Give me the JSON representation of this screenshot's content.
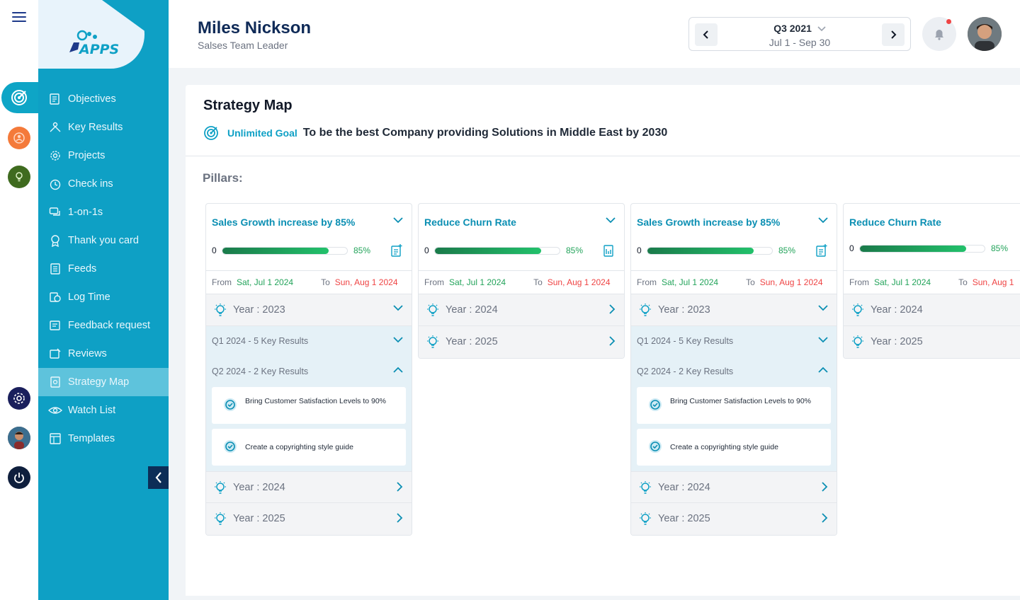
{
  "brand": {
    "logo_text_a": "i",
    "logo_text_b": "APPS"
  },
  "sidebar": {
    "items": [
      {
        "label": "Objectives",
        "icon": "objectives-icon"
      },
      {
        "label": "Key Results",
        "icon": "key-results-icon"
      },
      {
        "label": "Projects",
        "icon": "projects-icon"
      },
      {
        "label": "Check ins",
        "icon": "check-ins-icon"
      },
      {
        "label": "1-on-1s",
        "icon": "one-on-ones-icon"
      },
      {
        "label": "Thank you card",
        "icon": "thank-you-card-icon"
      },
      {
        "label": "Feeds",
        "icon": "feeds-icon"
      },
      {
        "label": "Log Time",
        "icon": "log-time-icon"
      },
      {
        "label": "Feedback request",
        "icon": "feedback-request-icon"
      },
      {
        "label": "Reviews",
        "icon": "reviews-icon"
      },
      {
        "label": "Strategy Map",
        "icon": "strategy-map-icon",
        "active": true
      },
      {
        "label": "Watch List",
        "icon": "watch-list-icon"
      },
      {
        "label": "Templates",
        "icon": "templates-icon"
      }
    ]
  },
  "header": {
    "user_name": "Miles Nickson",
    "user_role": "Salses Team Leader",
    "quarter": "Q3 2021",
    "quarter_range": "Jul 1 - Sep 30"
  },
  "page": {
    "title": "Strategy Map",
    "goal_label": "Unlimited Goal",
    "goal_text": "To be the best Company providing Solutions in Middle East by 2030",
    "pillars_label": "Pillars:"
  },
  "pillars": [
    {
      "title": "Sales Growth increase by 85%",
      "progress_start": "0",
      "progress_pct": "85%",
      "progress_value": 0.85,
      "from_label": "From",
      "from_date": "Sat, Jul 1 2024",
      "to_label": "To",
      "to_date": "Sun, Aug 1 2024",
      "year_2023": "Year : 2023",
      "q1": "Q1 2024 - 5 Key Results",
      "q2": "Q2 2024 - 2 Key Results",
      "kr1": "Bring Customer Satisfaction Levels to 90%",
      "kr2": "Create a copyrighting style guide",
      "year_2024": "Year : 2024",
      "year_2025": "Year : 2025"
    },
    {
      "title": "Reduce Churn Rate",
      "progress_start": "0",
      "progress_pct": "85%",
      "progress_value": 0.85,
      "from_label": "From",
      "from_date": "Sat, Jul 1 2024",
      "to_label": "To",
      "to_date": "Sun, Aug 1 2024",
      "year_2024": "Year : 2024",
      "year_2025": "Year : 2025"
    },
    {
      "title": "Sales Growth increase by 85%",
      "progress_start": "0",
      "progress_pct": "85%",
      "progress_value": 0.85,
      "from_label": "From",
      "from_date": "Sat, Jul 1 2024",
      "to_label": "To",
      "to_date": "Sun, Aug 1 2024",
      "year_2023": "Year : 2023",
      "q1": "Q1 2024 - 5 Key Results",
      "q2": "Q2 2024 - 2 Key Results",
      "kr1": "Bring Customer Satisfaction Levels to 90%",
      "kr2": "Create a copyrighting style guide",
      "year_2024": "Year : 2024",
      "year_2025": "Year : 2025"
    },
    {
      "title": "Reduce Churn Rate",
      "progress_start": "0",
      "progress_pct": "85%",
      "progress_value": 0.85,
      "from_label": "From",
      "from_date": "Sat, Jul 1 2024",
      "to_label": "To",
      "to_date": "Sun, Aug 1",
      "year_2024": "Year : 2024",
      "year_2025": "Year : 2025"
    }
  ],
  "colors": {
    "sidebar": "#0ea0c5",
    "accent": "#0b8fb3",
    "navy": "#0f2a57",
    "progress_green": "#22c16b",
    "date_from": "#22a35a",
    "date_to": "#ef4444"
  }
}
